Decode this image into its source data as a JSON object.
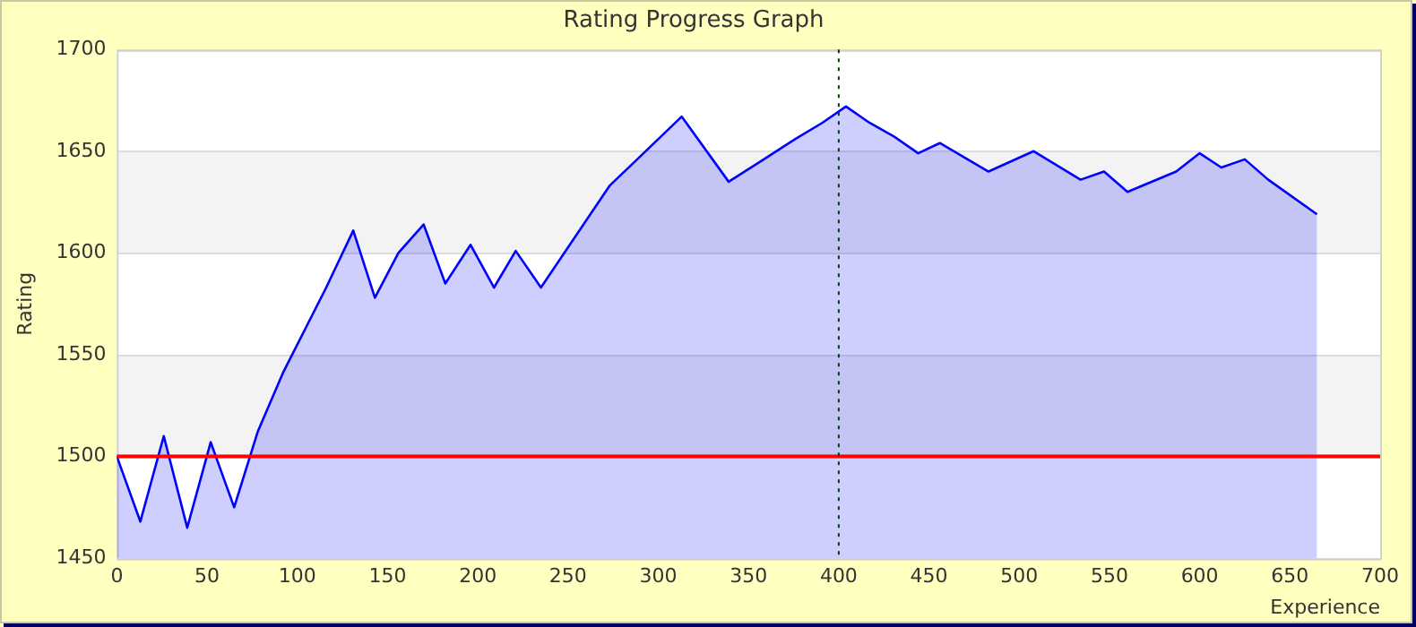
{
  "chart_data": {
    "type": "area",
    "title": "Rating Progress Graph",
    "xlabel": "Experience",
    "ylabel": "Rating",
    "x": [
      0,
      13,
      26,
      39,
      52,
      65,
      78,
      92,
      116,
      131,
      143,
      156,
      170,
      182,
      196,
      209,
      221,
      235,
      273,
      286,
      313,
      339,
      355,
      376,
      391,
      404,
      417,
      431,
      444,
      456,
      483,
      508,
      534,
      547,
      560,
      587,
      600,
      612,
      625,
      638,
      665
    ],
    "series": [
      {
        "color": "#0000ff",
        "values": [
          1500,
          1468,
          1510,
          1465,
          1507,
          1475,
          1512,
          1541,
          1583,
          1611,
          1578,
          1600,
          1614,
          1585,
          1604,
          1583,
          1601,
          1583,
          1633,
          1644,
          1667,
          1635,
          1644,
          1656,
          1664,
          1672,
          1664,
          1657,
          1649,
          1654,
          1640,
          1650,
          1636,
          1640,
          1630,
          1640,
          1649,
          1642,
          1646,
          1636,
          1619
        ]
      }
    ],
    "xlim": [
      0,
      700
    ],
    "xticks": [
      0,
      50,
      100,
      150,
      200,
      250,
      300,
      350,
      400,
      450,
      500,
      550,
      600,
      650,
      700
    ],
    "ylim": [
      1450,
      1700
    ],
    "yticks": [
      1450,
      1500,
      1550,
      1600,
      1650,
      1700
    ],
    "ref_lines": [
      {
        "axis": "y",
        "value": 1500,
        "color": "#ff0000",
        "line_style": "solid"
      },
      {
        "axis": "x",
        "value": 400,
        "color": "#004000",
        "line_style": "dotted"
      }
    ],
    "grid": "y",
    "legend": false,
    "marker": "none",
    "line_style": "solid"
  }
}
